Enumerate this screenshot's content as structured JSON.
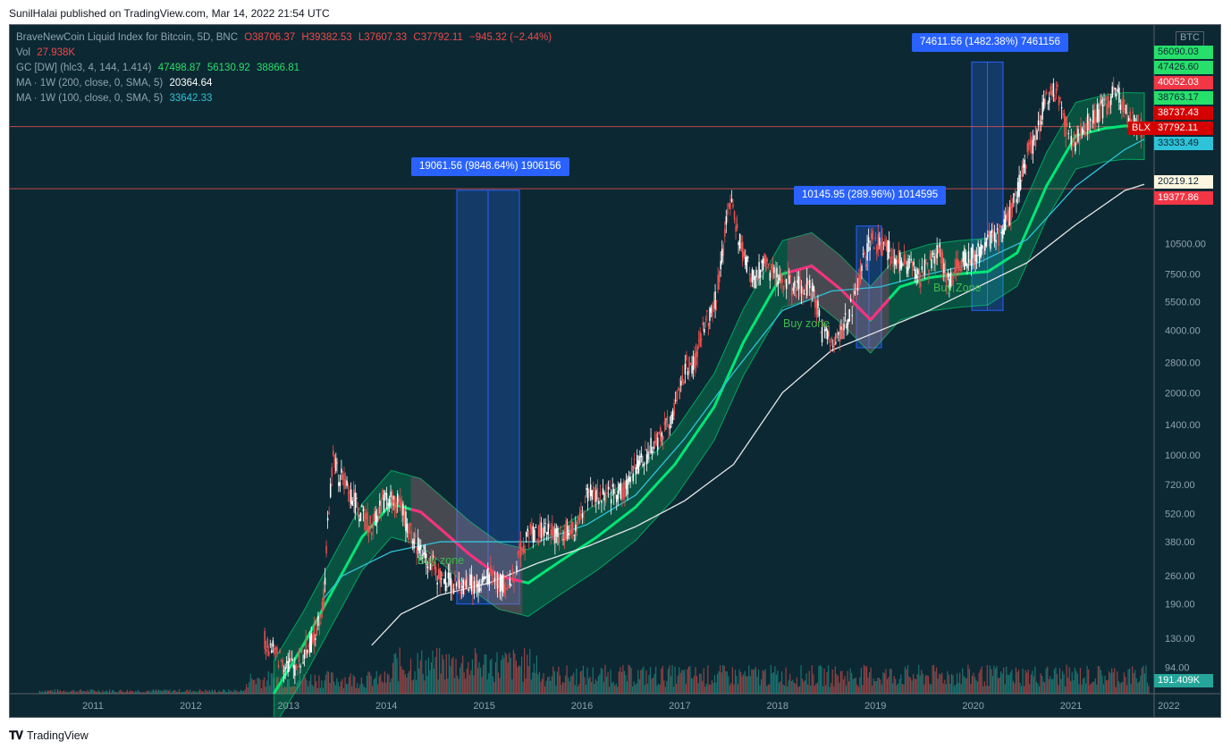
{
  "publisher_line": "SunilHalai published on TradingView.com, Mar 14, 2022 21:54 UTC",
  "footer_brand": "TradingView",
  "legend": {
    "symbol": "BraveNewCoin Liquid Index for Bitcoin, 5D, BNC",
    "o": "O38706.37",
    "h": "H39382.53",
    "l": "L37607.33",
    "c": "C37792.11",
    "chg": "−945.32 (−2.44%)",
    "vol_label": "Vol",
    "vol_value": "27.938K",
    "gc_label": "GC [DW] (hlc3, 4, 144, 1.414)",
    "gc_v1": "47498.87",
    "gc_v2": "56130.92",
    "gc_v3": "38866.81",
    "ma200_label": "MA · 1W (200, close, 0, SMA, 5)",
    "ma200_value": "20364.64",
    "ma100_label": "MA · 1W (100, close, 0, SMA, 5)",
    "ma100_value": "33642.33"
  },
  "currency": "BTC",
  "price_markers": [
    {
      "text": "56090.03",
      "bg": "#27e06b",
      "fg": "#0c2833"
    },
    {
      "text": "47426.60",
      "bg": "#27e06b",
      "fg": "#0c2833"
    },
    {
      "text": "40052.03",
      "bg": "#f23645",
      "fg": "#ffffff"
    },
    {
      "text": "38763.17",
      "bg": "#27e06b",
      "fg": "#0c2833"
    },
    {
      "text": "38737.43",
      "bg": "#d50000",
      "fg": "#ffffff"
    },
    {
      "text": "37792.11",
      "bg": "#d50000",
      "fg": "#ffffff"
    },
    {
      "text": "33333.49",
      "bg": "#2fc3d9",
      "fg": "#0c2833"
    },
    {
      "text": "20219.12",
      "bg": "#fff6e0",
      "fg": "#0c2833"
    },
    {
      "text": "19377.86",
      "bg": "#f23645",
      "fg": "#ffffff"
    },
    {
      "text": "191.409K",
      "bg": "#26a69a",
      "fg": "#ffffff"
    }
  ],
  "blx_tag": "BLX",
  "callouts": [
    {
      "text": "19061.56 (9848.64%) 1906156"
    },
    {
      "text": "10145.95 (289.96%) 1014595"
    },
    {
      "text": "74611.56 (1482.38%) 7461156"
    }
  ],
  "zone_labels": [
    "Buy zone",
    "Buy zone",
    "Buy Zone"
  ],
  "colors": {
    "background": "#0c2833",
    "band_green": "#00e676",
    "band_red": "#ff2e7e",
    "ma200": "#e6e6e6",
    "ma100": "#2fc3d9",
    "candle_up": "#ffffff",
    "candle_down": "#ef5350",
    "measure_box": "#1e4fa8"
  },
  "chart_data": {
    "type": "line",
    "scale": "log",
    "x_axis": {
      "ticks": [
        "2011",
        "2012",
        "2013",
        "2014",
        "2015",
        "2016",
        "2017",
        "2018",
        "2019",
        "2020",
        "2021",
        "2022"
      ]
    },
    "y_axis": {
      "ticks": [
        "10500.00",
        "7500.00",
        "5500.00",
        "4000.00",
        "2800.00",
        "2000.00",
        "1400.00",
        "1000.00",
        "720.00",
        "520.00",
        "380.00",
        "260.00",
        "190.00",
        "130.00",
        "94.00"
      ],
      "ylim": [
        70,
        120000
      ]
    },
    "series": [
      {
        "name": "BraveNewCoin Liquid Index for Bitcoin",
        "kind": "candles",
        "x": [
          2013.2,
          2013.3,
          2013.4,
          2013.5,
          2013.6,
          2013.7,
          2013.8,
          2013.85,
          2013.9,
          2013.95,
          2014.0,
          2014.1,
          2014.2,
          2014.3,
          2014.4,
          2014.5,
          2014.6,
          2014.7,
          2014.8,
          2014.9,
          2015.0,
          2015.1,
          2015.2,
          2015.3,
          2015.4,
          2015.5,
          2015.6,
          2015.7,
          2015.8,
          2015.9,
          2016.0,
          2016.2,
          2016.4,
          2016.5,
          2016.7,
          2016.9,
          2017.0,
          2017.2,
          2017.4,
          2017.5,
          2017.6,
          2017.7,
          2017.8,
          2017.9,
          2017.95,
          2018.0,
          2018.1,
          2018.2,
          2018.3,
          2018.4,
          2018.5,
          2018.6,
          2018.7,
          2018.8,
          2018.85,
          2018.9,
          2019.0,
          2019.1,
          2019.2,
          2019.3,
          2019.4,
          2019.5,
          2019.6,
          2019.7,
          2019.8,
          2019.9,
          2020.0,
          2020.1,
          2020.2,
          2020.3,
          2020.4,
          2020.5,
          2020.6,
          2020.7,
          2020.8,
          2020.9,
          2021.0,
          2021.1,
          2021.2,
          2021.3,
          2021.4,
          2021.5,
          2021.6,
          2021.7,
          2021.8,
          2021.9,
          2022.0,
          2022.1,
          2022.2
        ],
        "y": [
          130,
          110,
          100,
          95,
          110,
          130,
          200,
          500,
          1000,
          800,
          750,
          620,
          500,
          450,
          600,
          620,
          550,
          400,
          350,
          300,
          250,
          240,
          230,
          240,
          225,
          270,
          240,
          230,
          330,
          420,
          430,
          420,
          450,
          650,
          620,
          700,
          900,
          1150,
          1700,
          2700,
          2800,
          4300,
          5500,
          11000,
          17000,
          14000,
          9000,
          7000,
          8500,
          7500,
          7200,
          6500,
          6500,
          6300,
          5200,
          3900,
          3600,
          4000,
          5200,
          8000,
          11000,
          10500,
          9500,
          8500,
          8000,
          7300,
          8500,
          9500,
          6800,
          8700,
          9200,
          9500,
          11000,
          11500,
          14000,
          19000,
          29000,
          36000,
          56000,
          58000,
          37000,
          33000,
          40000,
          46000,
          48000,
          60000,
          47000,
          40000,
          38000
        ]
      },
      {
        "name": "MA · 1W (200, close, 0, SMA, 5)",
        "x": [
          2014.3,
          2014.6,
          2015.0,
          2015.5,
          2016.0,
          2016.5,
          2017.0,
          2017.5,
          2018.0,
          2018.5,
          2019.0,
          2019.5,
          2020.0,
          2020.5,
          2021.0,
          2021.5,
          2022.0,
          2022.2
        ],
        "y": [
          120,
          170,
          210,
          240,
          300,
          360,
          450,
          600,
          900,
          2000,
          3200,
          4000,
          5000,
          6500,
          8500,
          13000,
          19000,
          20364.64
        ]
      },
      {
        "name": "MA · 1W (100, close, 0, SMA, 5)",
        "x": [
          2013.8,
          2014.0,
          2014.5,
          2015.0,
          2015.5,
          2016.0,
          2016.5,
          2017.0,
          2017.5,
          2018.0,
          2018.5,
          2019.0,
          2019.5,
          2020.0,
          2020.5,
          2021.0,
          2021.5,
          2022.0,
          2022.2
        ],
        "y": [
          200,
          260,
          340,
          380,
          380,
          380,
          460,
          640,
          1200,
          2500,
          5000,
          6200,
          6500,
          7500,
          8500,
          11000,
          20000,
          30000,
          33642.33
        ]
      },
      {
        "name": "GC [DW] (hlc3, 4, 144, 1.414)",
        "x": [
          2013.3,
          2013.6,
          2013.9,
          2014.2,
          2014.5,
          2014.8,
          2015.0,
          2015.3,
          2015.6,
          2015.9,
          2016.2,
          2016.6,
          2017.0,
          2017.4,
          2017.8,
          2018.1,
          2018.5,
          2018.8,
          2019.1,
          2019.4,
          2019.7,
          2020.0,
          2020.3,
          2020.6,
          2020.9,
          2021.2,
          2021.5,
          2021.8,
          2022.0,
          2022.2
        ],
        "y": [
          70,
          120,
          220,
          400,
          580,
          530,
          440,
          330,
          260,
          240,
          300,
          400,
          560,
          900,
          1700,
          3500,
          7500,
          8200,
          6300,
          4500,
          6500,
          7200,
          7500,
          7700,
          9500,
          20000,
          35000,
          38000,
          39000,
          38866.81
        ]
      }
    ],
    "measurements": [
      {
        "from": 190,
        "to": 19061.56,
        "label": "19061.56 (9848.64%) 1906156"
      },
      {
        "from": 3300,
        "to": 12800,
        "label": "10145.95 (289.96%) 1014595"
      },
      {
        "from": 5000,
        "to": 79500,
        "label": "74611.56 (1482.38%) 7461156"
      }
    ],
    "horizontal_lines": [
      38706.37,
      19377.86
    ]
  }
}
